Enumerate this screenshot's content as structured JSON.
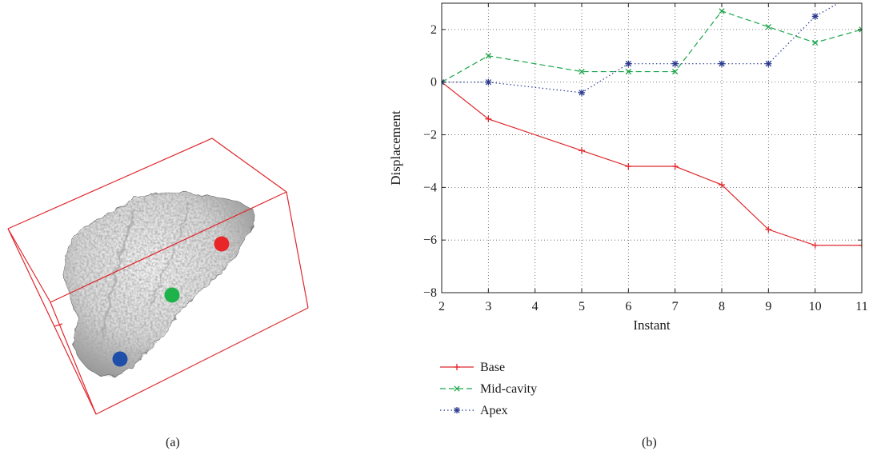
{
  "panel_a": {
    "caption": "(a)",
    "marker_colors": {
      "red": "#e8262a",
      "green": "#1db34a",
      "blue": "#1f4fa8"
    },
    "box_color": "#e0282e"
  },
  "panel_b": {
    "caption": "(b)"
  },
  "chart_data": {
    "type": "line",
    "title": "",
    "xlabel": "Instant",
    "ylabel": "Displacement",
    "x": [
      2,
      3,
      5,
      6,
      7,
      8,
      9,
      10,
      11
    ],
    "xticks": [
      "2",
      "3",
      "4",
      "5",
      "6",
      "7",
      "8",
      "9",
      "10",
      "11"
    ],
    "yticks": [
      "−8",
      "−6",
      "−4",
      "−2",
      "0",
      "2"
    ],
    "xlim": [
      2,
      11
    ],
    "ylim": [
      -8,
      3
    ],
    "grid": true,
    "legend_position": "bottom-left",
    "series": [
      {
        "name": "Base",
        "color": "#e0282e",
        "dash": "solid",
        "marker": "plus",
        "x": [
          2,
          3,
          5,
          6,
          7,
          8,
          9,
          10,
          11
        ],
        "values": [
          0,
          -1.4,
          -2.6,
          -3.2,
          -3.2,
          -3.9,
          -5.6,
          -6.2,
          -6.2
        ]
      },
      {
        "name": "Mid-cavity",
        "color": "#1aa64a",
        "dash": "dashed",
        "marker": "x",
        "x": [
          2,
          3,
          5,
          6,
          7,
          8,
          9,
          10,
          11
        ],
        "values": [
          0,
          1.0,
          0.4,
          0.4,
          0.4,
          2.7,
          2.1,
          1.5,
          2.0
        ]
      },
      {
        "name": "Apex",
        "color": "#2b3a8f",
        "dash": "dotted",
        "marker": "asterisk",
        "x": [
          2,
          3,
          5,
          6,
          7,
          8,
          9,
          10,
          11
        ],
        "values": [
          0,
          0,
          -0.4,
          0.7,
          0.7,
          0.7,
          0.7,
          2.5,
          3.5
        ]
      }
    ]
  }
}
